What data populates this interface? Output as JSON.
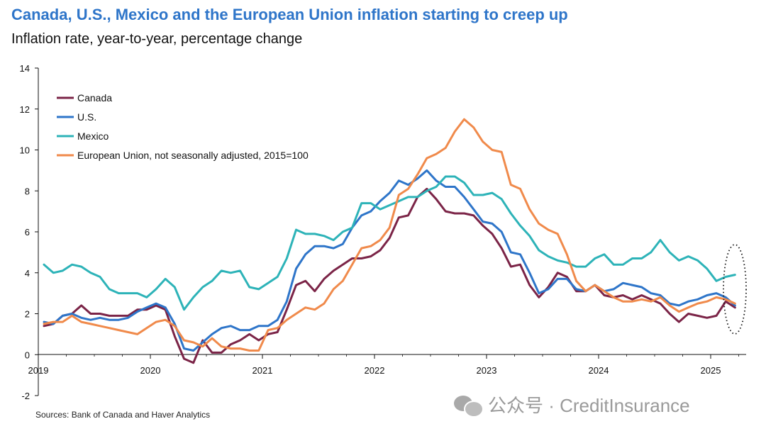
{
  "header": {
    "title": "Canada, U.S., Mexico and the European Union inflation starting to creep up",
    "subtitle": "Inflation rate, year-to-year, percentage change"
  },
  "footer": {
    "source": "Sources: Bank of Canada and Haver Analytics",
    "watermark": "公众号 · CreditInsurance",
    "watermark_icon": "wechat-icon"
  },
  "chart_data": {
    "type": "line",
    "ylim": [
      -2,
      14
    ],
    "yticks": [
      "14",
      "12",
      "10",
      "8",
      "6",
      "4",
      "2",
      "0",
      "-2"
    ],
    "ytick_values": [
      14,
      12,
      10,
      8,
      6,
      4,
      2,
      0,
      -2
    ],
    "xlim": [
      "2019-01",
      "2025-03"
    ],
    "xticks": [
      "2019",
      "2020",
      "2021",
      "2022",
      "2023",
      "2024",
      "2025"
    ],
    "legend_placement": "top-left",
    "grid": false,
    "annotation": "dotted ellipse around latest values (early 2025)",
    "series": [
      {
        "name": "Canada",
        "color": "#7b2447",
        "start": "2019-01",
        "values": [
          1.4,
          1.5,
          1.9,
          2.0,
          2.4,
          2.0,
          2.0,
          1.9,
          1.9,
          1.9,
          2.2,
          2.2,
          2.4,
          2.2,
          0.9,
          -0.2,
          -0.4,
          0.7,
          0.1,
          0.1,
          0.5,
          0.7,
          1.0,
          0.7,
          1.0,
          1.1,
          2.2,
          3.4,
          3.6,
          3.1,
          3.7,
          4.1,
          4.4,
          4.7,
          4.7,
          4.8,
          5.1,
          5.7,
          6.7,
          6.8,
          7.7,
          8.1,
          7.6,
          7.0,
          6.9,
          6.9,
          6.8,
          6.3,
          5.9,
          5.2,
          4.3,
          4.4,
          3.4,
          2.8,
          3.3,
          4.0,
          3.8,
          3.1,
          3.1,
          3.4,
          2.9,
          2.8,
          2.9,
          2.7,
          2.9,
          2.7,
          2.5,
          2.0,
          1.6,
          2.0,
          1.9,
          1.8,
          1.9,
          2.6,
          2.3
        ]
      },
      {
        "name": "U.S.",
        "color": "#2e75c9",
        "start": "2019-01",
        "values": [
          1.6,
          1.5,
          1.9,
          2.0,
          1.8,
          1.7,
          1.8,
          1.7,
          1.7,
          1.8,
          2.1,
          2.3,
          2.5,
          2.3,
          1.5,
          0.3,
          0.2,
          0.6,
          1.0,
          1.3,
          1.4,
          1.2,
          1.2,
          1.4,
          1.4,
          1.7,
          2.6,
          4.2,
          4.9,
          5.3,
          5.3,
          5.2,
          5.4,
          6.2,
          6.8,
          7.0,
          7.5,
          7.9,
          8.5,
          8.3,
          8.6,
          9.0,
          8.5,
          8.2,
          8.2,
          7.7,
          7.1,
          6.5,
          6.4,
          6.0,
          5.0,
          4.9,
          4.0,
          3.0,
          3.2,
          3.7,
          3.7,
          3.2,
          3.1,
          3.4,
          3.1,
          3.2,
          3.5,
          3.4,
          3.3,
          3.0,
          2.9,
          2.5,
          2.4,
          2.6,
          2.7,
          2.9,
          3.0,
          2.8,
          2.4
        ]
      },
      {
        "name": "Mexico",
        "color": "#2db3b8",
        "start": "2019-01",
        "values": [
          4.4,
          4.0,
          4.1,
          4.4,
          4.3,
          4.0,
          3.8,
          3.2,
          3.0,
          3.0,
          3.0,
          2.8,
          3.2,
          3.7,
          3.3,
          2.2,
          2.8,
          3.3,
          3.6,
          4.1,
          4.0,
          4.1,
          3.3,
          3.2,
          3.5,
          3.8,
          4.7,
          6.1,
          5.9,
          5.9,
          5.8,
          5.6,
          6.0,
          6.2,
          7.4,
          7.4,
          7.1,
          7.3,
          7.5,
          7.7,
          7.7,
          8.0,
          8.2,
          8.7,
          8.7,
          8.4,
          7.8,
          7.8,
          7.9,
          7.6,
          6.9,
          6.3,
          5.8,
          5.1,
          4.8,
          4.6,
          4.5,
          4.3,
          4.3,
          4.7,
          4.9,
          4.4,
          4.4,
          4.7,
          4.7,
          5.0,
          5.6,
          5.0,
          4.6,
          4.8,
          4.6,
          4.2,
          3.6,
          3.8,
          3.9
        ]
      },
      {
        "name": "European Union, not seasonally adjusted, 2015=100",
        "color": "#f08a4b",
        "start": "2019-01",
        "values": [
          1.5,
          1.6,
          1.6,
          1.9,
          1.6,
          1.5,
          1.4,
          1.3,
          1.2,
          1.1,
          1.0,
          1.3,
          1.6,
          1.7,
          1.4,
          0.7,
          0.6,
          0.4,
          0.8,
          0.4,
          0.3,
          0.3,
          0.2,
          0.2,
          1.2,
          1.3,
          1.7,
          2.0,
          2.3,
          2.2,
          2.5,
          3.2,
          3.6,
          4.4,
          5.2,
          5.3,
          5.6,
          6.2,
          7.8,
          8.1,
          8.8,
          9.6,
          9.8,
          10.1,
          10.9,
          11.5,
          11.1,
          10.4,
          10.0,
          9.9,
          8.3,
          8.1,
          7.1,
          6.4,
          6.1,
          5.9,
          4.9,
          3.6,
          3.1,
          3.4,
          3.1,
          2.8,
          2.6,
          2.6,
          2.7,
          2.6,
          2.8,
          2.4,
          2.1,
          2.3,
          2.5,
          2.6,
          2.8,
          2.7,
          2.5
        ]
      }
    ]
  }
}
